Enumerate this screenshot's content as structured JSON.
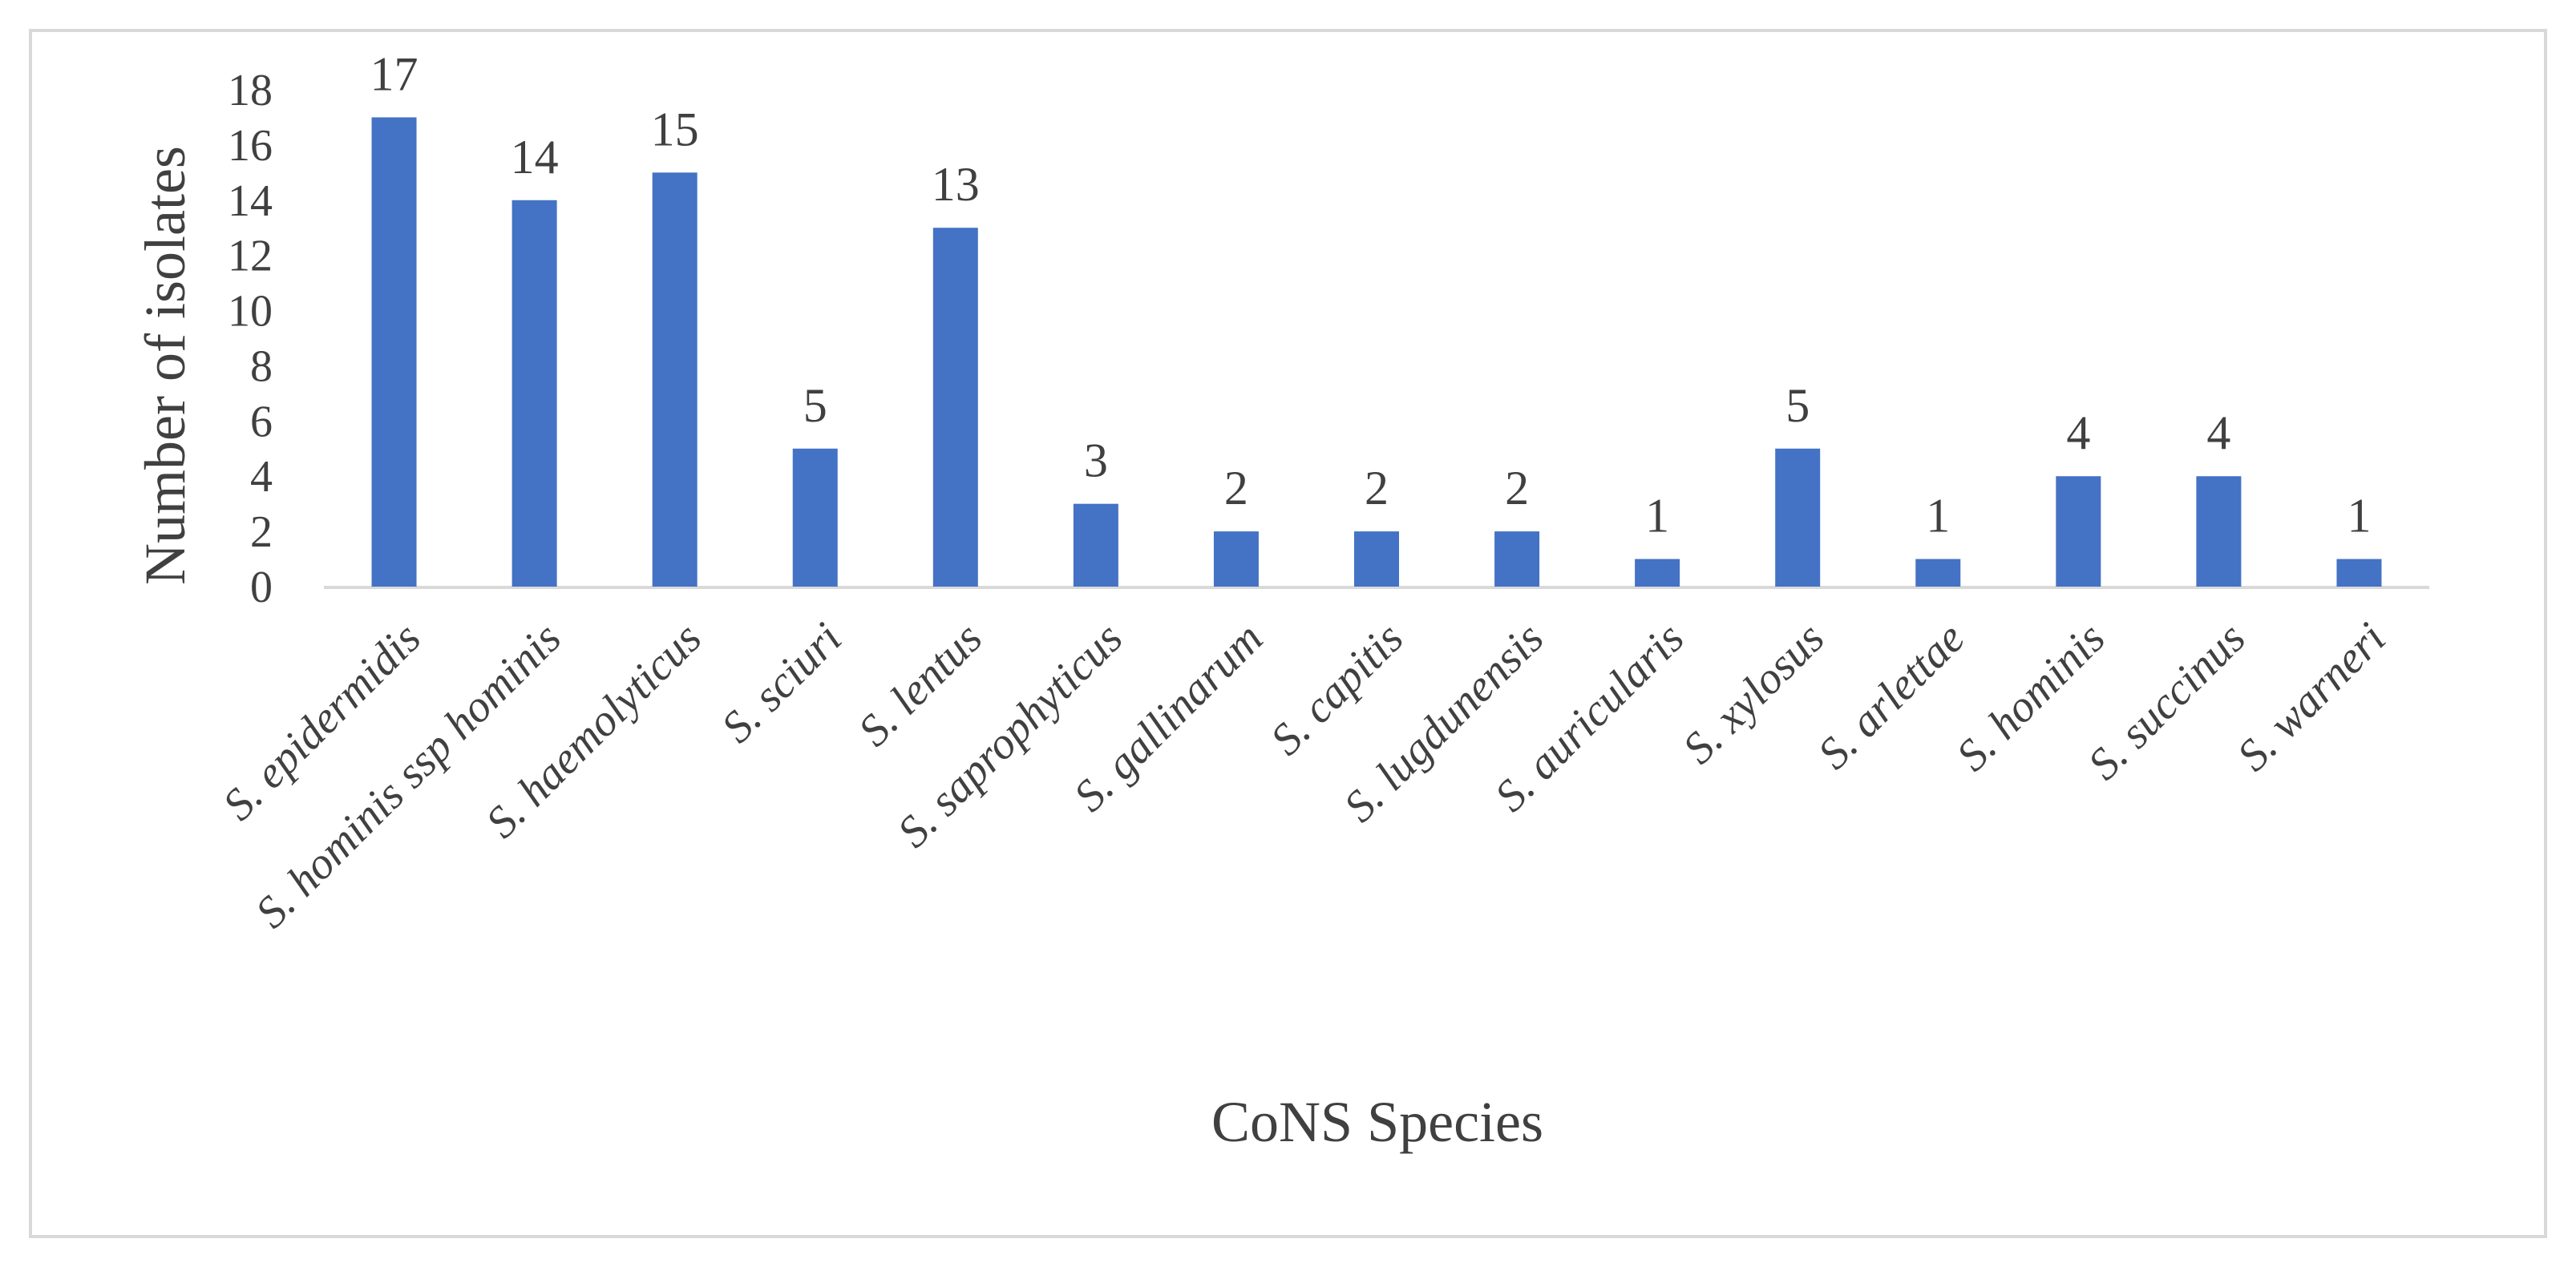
{
  "chart_data": {
    "type": "bar",
    "title": "",
    "xlabel": "CoNS Species",
    "ylabel": "Number of isolates",
    "categories": [
      "S. epidermidis",
      "S. hominis ssp hominis",
      "S. haemolyticus",
      "S. sciuri",
      "S. lentus",
      "S. saprophyticus",
      "S. gallinarum",
      "S. capitis",
      "S. lugdunensis",
      "S. auricularis",
      "S. xylosus",
      "S. arlettae",
      "S. hominis",
      "S. succinus",
      "S. warneri"
    ],
    "values": [
      17,
      14,
      15,
      5,
      13,
      3,
      2,
      2,
      2,
      1,
      5,
      1,
      4,
      4,
      1
    ],
    "data_labels": [
      "17",
      "14",
      "15",
      "5",
      "13",
      "3",
      "2",
      "2",
      "2",
      "1",
      "5",
      "1",
      "4",
      "4",
      "1"
    ],
    "yticks": [
      0,
      2,
      4,
      6,
      8,
      10,
      12,
      14,
      16,
      18
    ],
    "ytick_labels": [
      "0",
      "2",
      "4",
      "6",
      "8",
      "10",
      "12",
      "14",
      "16",
      "18"
    ],
    "ylim": [
      0,
      18
    ],
    "grid": false,
    "legend": "none",
    "bar_color": "#4472c4"
  }
}
